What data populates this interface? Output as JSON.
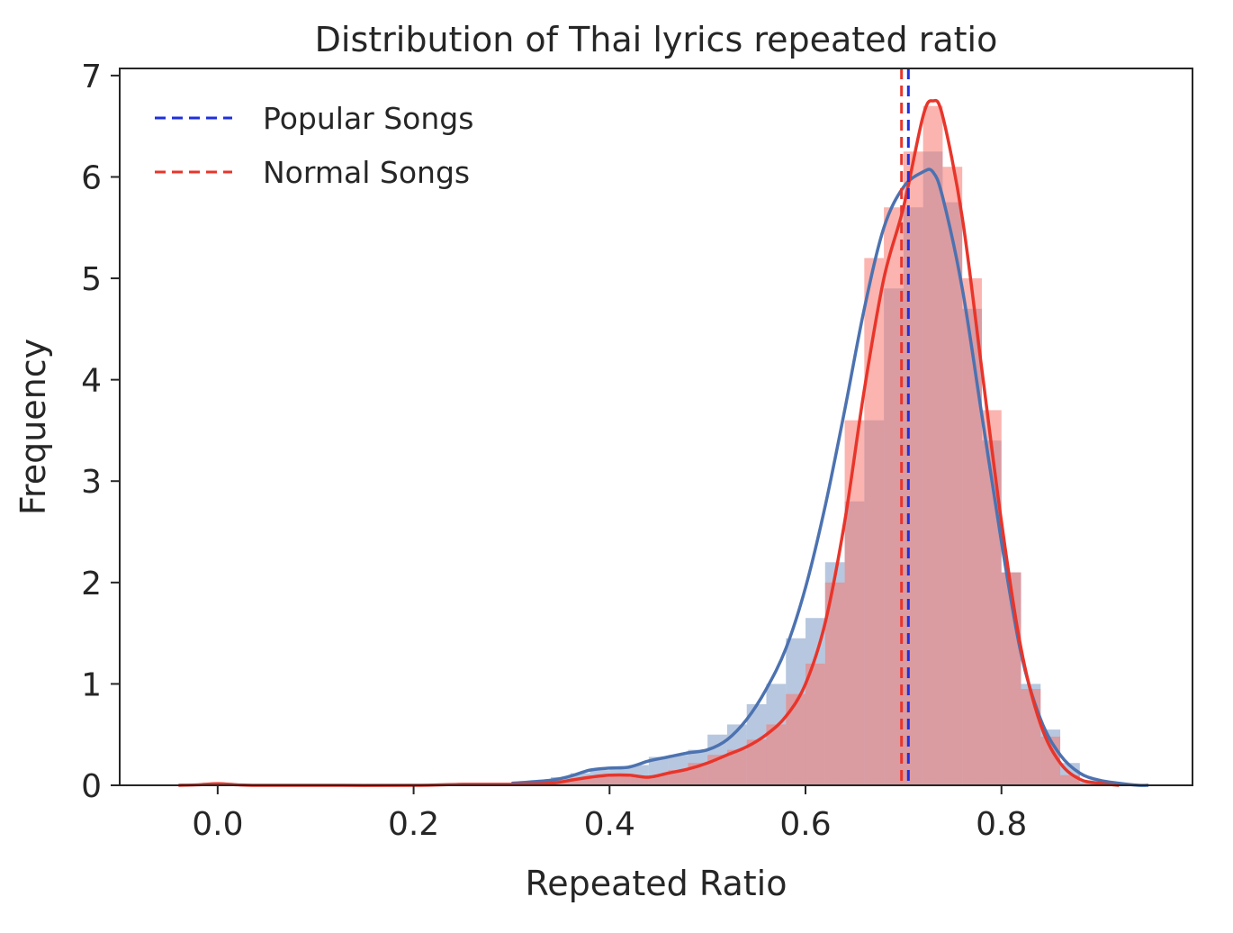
{
  "chart_data": {
    "type": "histogram",
    "title": "Distribution of Thai lyrics repeated ratio",
    "xlabel": "Repeated Ratio",
    "ylabel": "Frequency",
    "xlim": [
      -0.1,
      0.995
    ],
    "ylim": [
      0,
      7.07
    ],
    "xticks": [
      0.0,
      0.2,
      0.4,
      0.6,
      0.8
    ],
    "xtick_labels": [
      "0.0",
      "0.2",
      "0.4",
      "0.6",
      "0.8"
    ],
    "yticks": [
      0,
      1,
      2,
      3,
      4,
      5,
      6,
      7
    ],
    "ytick_labels": [
      "0",
      "1",
      "2",
      "3",
      "4",
      "5",
      "6",
      "7"
    ],
    "grid": false,
    "legend_position": "top-left",
    "legend": [
      {
        "label": "Popular Songs",
        "color": "#1f2fe0",
        "style": "dashed"
      },
      {
        "label": "Normal Songs",
        "color": "#e8352a",
        "style": "dashed"
      }
    ],
    "histograms": [
      {
        "name": "popular",
        "color": "#4c72b0",
        "opacity": 0.4,
        "bin_width": 0.02,
        "bins": [
          {
            "x": 0.31,
            "y": 0.03
          },
          {
            "x": 0.33,
            "y": 0.05
          },
          {
            "x": 0.35,
            "y": 0.08
          },
          {
            "x": 0.37,
            "y": 0.12
          },
          {
            "x": 0.39,
            "y": 0.15
          },
          {
            "x": 0.41,
            "y": 0.17
          },
          {
            "x": 0.43,
            "y": 0.2
          },
          {
            "x": 0.45,
            "y": 0.28
          },
          {
            "x": 0.47,
            "y": 0.3
          },
          {
            "x": 0.49,
            "y": 0.35
          },
          {
            "x": 0.51,
            "y": 0.5
          },
          {
            "x": 0.53,
            "y": 0.6
          },
          {
            "x": 0.55,
            "y": 0.8
          },
          {
            "x": 0.57,
            "y": 1.0
          },
          {
            "x": 0.59,
            "y": 1.45
          },
          {
            "x": 0.61,
            "y": 1.65
          },
          {
            "x": 0.63,
            "y": 2.2
          },
          {
            "x": 0.65,
            "y": 2.8
          },
          {
            "x": 0.67,
            "y": 3.6
          },
          {
            "x": 0.69,
            "y": 4.9
          },
          {
            "x": 0.71,
            "y": 5.7
          },
          {
            "x": 0.73,
            "y": 6.25
          },
          {
            "x": 0.75,
            "y": 5.75
          },
          {
            "x": 0.77,
            "y": 4.7
          },
          {
            "x": 0.79,
            "y": 3.4
          },
          {
            "x": 0.81,
            "y": 2.1
          },
          {
            "x": 0.83,
            "y": 1.0
          },
          {
            "x": 0.85,
            "y": 0.55
          },
          {
            "x": 0.87,
            "y": 0.22
          },
          {
            "x": 0.89,
            "y": 0.05
          }
        ]
      },
      {
        "name": "normal",
        "color": "#f8766d",
        "opacity": 0.55,
        "bin_width": 0.02,
        "bins": [
          {
            "x": 0.31,
            "y": 0.02
          },
          {
            "x": 0.33,
            "y": 0.03
          },
          {
            "x": 0.35,
            "y": 0.05
          },
          {
            "x": 0.37,
            "y": 0.07
          },
          {
            "x": 0.39,
            "y": 0.08
          },
          {
            "x": 0.41,
            "y": 0.1
          },
          {
            "x": 0.43,
            "y": 0.08
          },
          {
            "x": 0.45,
            "y": 0.1
          },
          {
            "x": 0.47,
            "y": 0.15
          },
          {
            "x": 0.49,
            "y": 0.22
          },
          {
            "x": 0.51,
            "y": 0.3
          },
          {
            "x": 0.53,
            "y": 0.35
          },
          {
            "x": 0.55,
            "y": 0.45
          },
          {
            "x": 0.57,
            "y": 0.6
          },
          {
            "x": 0.59,
            "y": 0.9
          },
          {
            "x": 0.61,
            "y": 1.2
          },
          {
            "x": 0.63,
            "y": 2.0
          },
          {
            "x": 0.65,
            "y": 3.6
          },
          {
            "x": 0.67,
            "y": 5.2
          },
          {
            "x": 0.69,
            "y": 5.7
          },
          {
            "x": 0.71,
            "y": 6.25
          },
          {
            "x": 0.73,
            "y": 6.7
          },
          {
            "x": 0.75,
            "y": 6.1
          },
          {
            "x": 0.77,
            "y": 5.0
          },
          {
            "x": 0.79,
            "y": 3.7
          },
          {
            "x": 0.81,
            "y": 2.1
          },
          {
            "x": 0.83,
            "y": 0.95
          },
          {
            "x": 0.85,
            "y": 0.48
          },
          {
            "x": 0.87,
            "y": 0.1
          },
          {
            "x": 0.89,
            "y": 0.02
          }
        ]
      }
    ],
    "kde": [
      {
        "name": "popular",
        "color": "#4c72b0",
        "x": [
          0.3,
          0.34,
          0.36,
          0.38,
          0.4,
          0.42,
          0.44,
          0.46,
          0.48,
          0.5,
          0.52,
          0.54,
          0.56,
          0.58,
          0.6,
          0.62,
          0.64,
          0.66,
          0.68,
          0.7,
          0.72,
          0.73,
          0.74,
          0.76,
          0.78,
          0.8,
          0.82,
          0.84,
          0.86,
          0.88,
          0.9,
          0.92,
          0.94,
          0.95
        ],
        "y": [
          0.02,
          0.05,
          0.09,
          0.15,
          0.17,
          0.18,
          0.24,
          0.28,
          0.32,
          0.35,
          0.45,
          0.65,
          0.95,
          1.35,
          1.95,
          2.75,
          3.7,
          4.7,
          5.5,
          5.9,
          6.05,
          6.05,
          5.8,
          4.9,
          3.65,
          2.4,
          1.3,
          0.65,
          0.3,
          0.12,
          0.05,
          0.02,
          0.0,
          0.0
        ]
      },
      {
        "name": "normal",
        "color": "#e8352a",
        "x": [
          -0.04,
          -0.02,
          0.0,
          0.02,
          0.04,
          0.1,
          0.2,
          0.25,
          0.3,
          0.34,
          0.36,
          0.38,
          0.4,
          0.42,
          0.44,
          0.46,
          0.48,
          0.5,
          0.52,
          0.54,
          0.56,
          0.58,
          0.6,
          0.62,
          0.64,
          0.66,
          0.68,
          0.7,
          0.72,
          0.73,
          0.74,
          0.76,
          0.78,
          0.8,
          0.82,
          0.84,
          0.86,
          0.88,
          0.9,
          0.92
        ],
        "y": [
          0.0,
          0.005,
          0.015,
          0.005,
          0.0,
          0.0,
          0.0,
          0.01,
          0.01,
          0.02,
          0.05,
          0.08,
          0.1,
          0.1,
          0.08,
          0.12,
          0.16,
          0.22,
          0.3,
          0.38,
          0.5,
          0.68,
          1.0,
          1.6,
          2.6,
          3.9,
          5.0,
          5.7,
          6.6,
          6.75,
          6.6,
          5.6,
          4.1,
          2.6,
          1.35,
          0.6,
          0.22,
          0.06,
          0.02,
          0.0
        ]
      }
    ],
    "mean_lines": [
      {
        "name": "Popular Songs",
        "x": 0.705,
        "color": "#1f2fe0"
      },
      {
        "name": "Normal Songs",
        "x": 0.698,
        "color": "#e8352a"
      }
    ]
  }
}
